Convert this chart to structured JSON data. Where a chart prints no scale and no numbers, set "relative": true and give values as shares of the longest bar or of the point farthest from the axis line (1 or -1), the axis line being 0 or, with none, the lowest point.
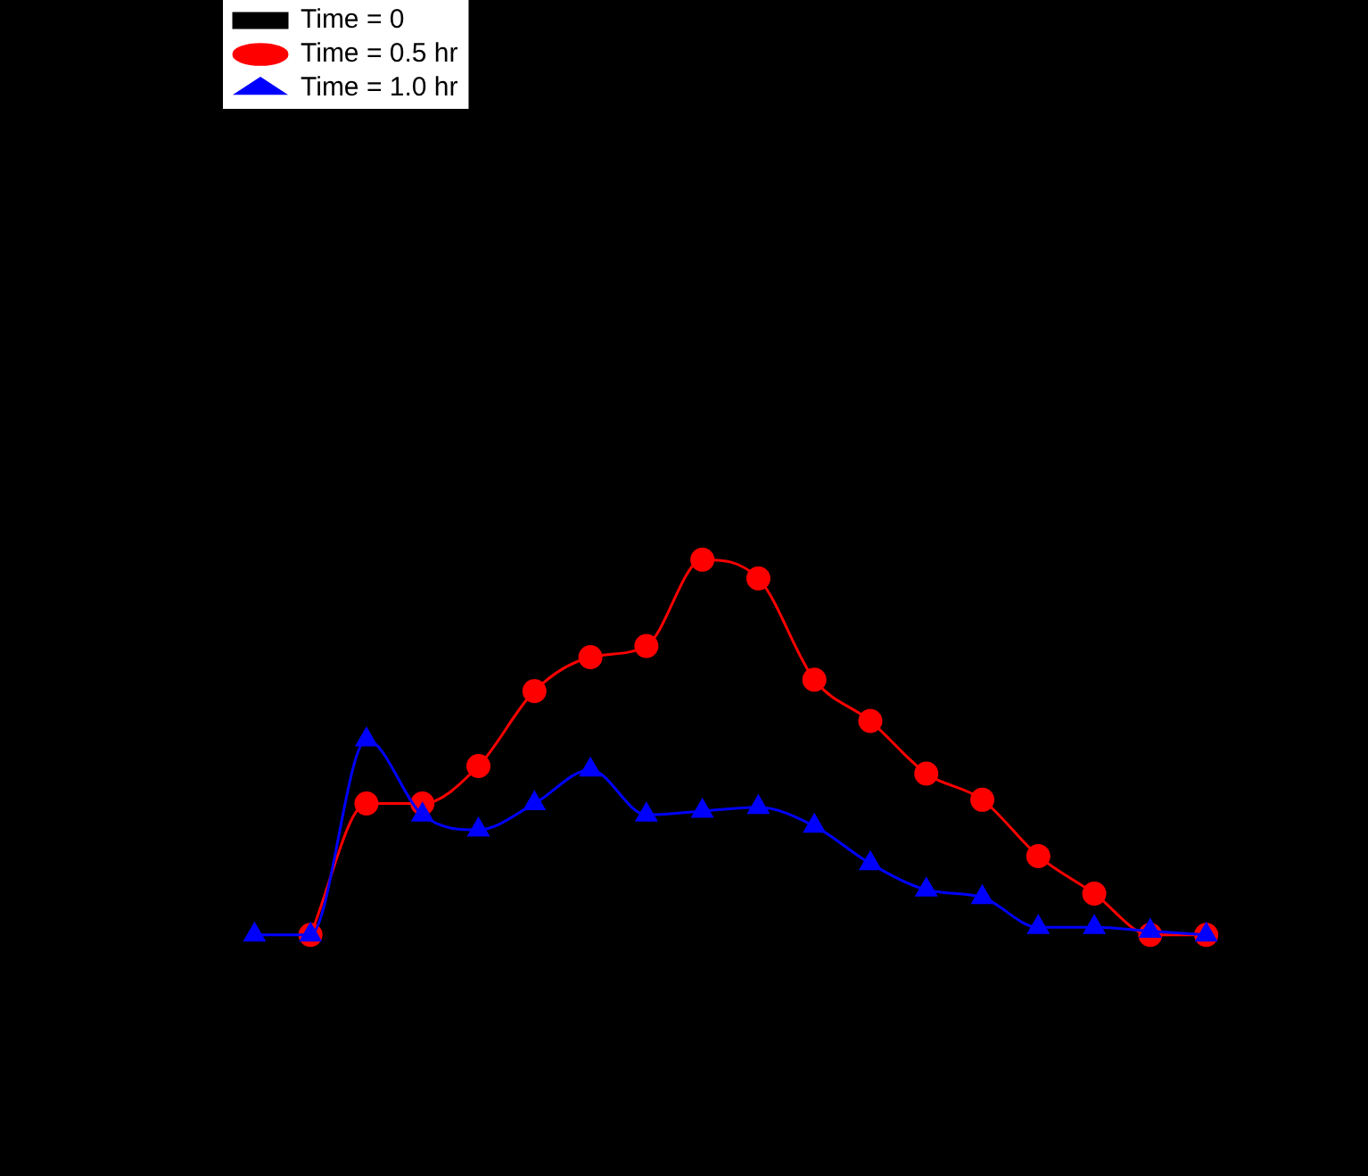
{
  "chart_data": {
    "type": "line",
    "relative": true,
    "legend": "top left",
    "line_style": "solid",
    "categories": [
      null,
      null,
      null,
      null,
      null,
      null,
      null,
      null,
      null,
      null,
      null,
      null,
      null,
      null,
      null,
      null,
      null,
      null
    ],
    "series": [
      {
        "name": "Time = 0",
        "color": "#000000",
        "marker": "square",
        "values": [
          null,
          null,
          null,
          null,
          null,
          null,
          null,
          null,
          null,
          null,
          null,
          null,
          null,
          null,
          null,
          null,
          null,
          null
        ]
      },
      {
        "name": "Time = 0.5 hr",
        "color": "#ff0000",
        "marker": "circle",
        "values": [
          null,
          0,
          0.35,
          0.35,
          0.45,
          0.65,
          0.74,
          0.77,
          1,
          0.95,
          0.68,
          0.57,
          0.43,
          0.36,
          0.21,
          0.11,
          0,
          0
        ]
      },
      {
        "name": "Time = 1.0 hr",
        "color": "#0000ff",
        "marker": "triangle",
        "values": [
          0,
          0,
          0.52,
          0.32,
          0.28,
          0.35,
          0.44,
          0.32,
          0.33,
          0.34,
          0.29,
          0.19,
          0.12,
          0.1,
          0.02,
          0.02,
          0.01,
          0
        ]
      }
    ]
  }
}
